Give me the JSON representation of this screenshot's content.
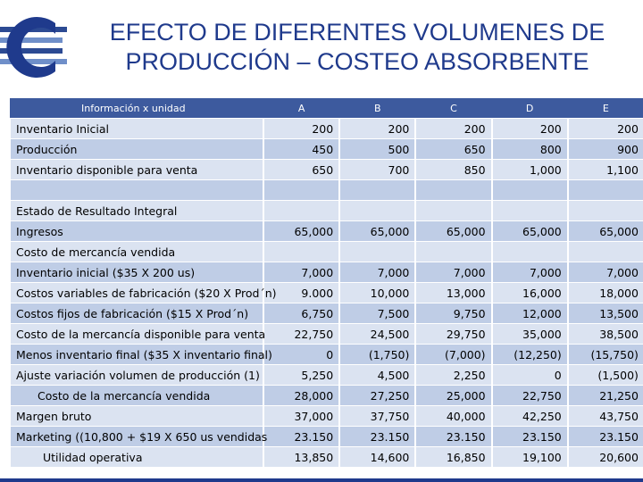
{
  "title": {
    "line1": "EFECTO DE DIFERENTES VOLUMENES DE",
    "line2": "PRODUCCIÓN – COSTEO ABSORBENTE"
  },
  "colors": {
    "brand": "#1f3a8c",
    "header": "#3d5a9e",
    "row_light": "#dbe3f1",
    "row_dark": "#bfcde6"
  },
  "table": {
    "headers": [
      "Información x unidad",
      "A",
      "B",
      "C",
      "D",
      "E"
    ],
    "rows": [
      {
        "label": "Inventario Inicial",
        "values": [
          "200",
          "200",
          "200",
          "200",
          "200"
        ]
      },
      {
        "label": "Producción",
        "values": [
          "450",
          "500",
          "650",
          "800",
          "900"
        ]
      },
      {
        "label": "Inventario disponible para venta",
        "values": [
          "650",
          "700",
          "850",
          "1,000",
          "1,100"
        ]
      },
      {
        "label": "",
        "values": [
          "",
          "",
          "",
          "",
          ""
        ]
      },
      {
        "label": "Estado de Resultado Integral",
        "values": [
          "",
          "",
          "",
          "",
          ""
        ]
      },
      {
        "label": "Ingresos",
        "values": [
          "65,000",
          "65,000",
          "65,000",
          "65,000",
          "65,000"
        ]
      },
      {
        "label": "Costo de mercancía vendida",
        "values": [
          "",
          "",
          "",
          "",
          ""
        ]
      },
      {
        "label": "Inventario inicial ($35 X 200 us)",
        "values": [
          "7,000",
          "7,000",
          "7,000",
          "7,000",
          "7,000"
        ]
      },
      {
        "label": "Costos variables de fabricación ($20 X Prod´n)",
        "values": [
          "9.000",
          "10,000",
          "13,000",
          "16,000",
          "18,000"
        ]
      },
      {
        "label": "Costos fijos de fabricación ($15 X Prod´n)",
        "values": [
          "6,750",
          "7,500",
          "9,750",
          "12,000",
          "13,500"
        ]
      },
      {
        "label": "Costo de la mercancía disponible para venta",
        "values": [
          "22,750",
          "24,500",
          "29,750",
          "35,000",
          "38,500"
        ]
      },
      {
        "label": "Menos inventario final ($35 X inventario final)",
        "values": [
          "0",
          "(1,750)",
          "(7,000)",
          "(12,250)",
          "(15,750)"
        ]
      },
      {
        "label": "Ajuste variación volumen de producción (1)",
        "values": [
          "5,250",
          "4,500",
          "2,250",
          "0",
          "(1,500)"
        ]
      },
      {
        "label": "Costo de la mercancía vendida",
        "values": [
          "28,000",
          "27,250",
          "25,000",
          "22,750",
          "21,250"
        ]
      },
      {
        "label": "Margen bruto",
        "values": [
          "37,000",
          "37,750",
          "40,000",
          "42,250",
          "43,750"
        ]
      },
      {
        "label": "Marketing ((10,800 + $19 X 650 us vendidas",
        "values": [
          "23.150",
          "23.150",
          "23.150",
          "23.150",
          "23.150"
        ]
      },
      {
        "label": "Utilidad operativa",
        "values": [
          "13,850",
          "14,600",
          "16,850",
          "19,100",
          "20,600"
        ]
      }
    ]
  }
}
